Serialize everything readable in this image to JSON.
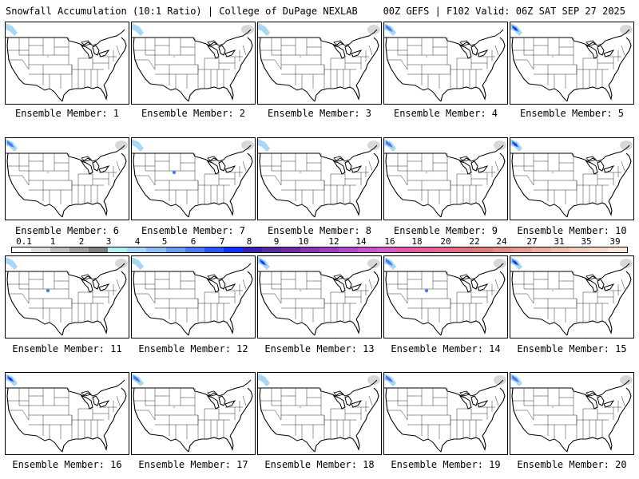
{
  "header": {
    "left": "Snowfall Accumulation (10:1 Ratio) | College of DuPage NEXLAB",
    "right": "00Z GEFS | F102 Valid: 06Z SAT SEP 27 2025"
  },
  "panels": [
    {
      "label": "Ensemble Member: 1",
      "snow_nw": 1,
      "snow_co": 1,
      "snow_ne": 0
    },
    {
      "label": "Ensemble Member: 2",
      "snow_nw": 1,
      "snow_co": 1,
      "snow_ne": 1
    },
    {
      "label": "Ensemble Member: 3",
      "snow_nw": 1,
      "snow_co": 1,
      "snow_ne": 1
    },
    {
      "label": "Ensemble Member: 4",
      "snow_nw": 2,
      "snow_co": 1,
      "snow_ne": 0
    },
    {
      "label": "Ensemble Member: 5",
      "snow_nw": 3,
      "snow_co": 1,
      "snow_ne": 1
    },
    {
      "label": "Ensemble Member: 6",
      "snow_nw": 2,
      "snow_co": 1,
      "snow_ne": 2
    },
    {
      "label": "Ensemble Member: 7",
      "snow_nw": 1,
      "snow_co": 2,
      "snow_ne": 1
    },
    {
      "label": "Ensemble Member: 8",
      "snow_nw": 1,
      "snow_co": 1,
      "snow_ne": 1
    },
    {
      "label": "Ensemble Member: 9",
      "snow_nw": 2,
      "snow_co": 1,
      "snow_ne": 1
    },
    {
      "label": "Ensemble Member: 10",
      "snow_nw": 3,
      "snow_co": 1,
      "snow_ne": 1
    },
    {
      "label": "Ensemble Member: 11",
      "snow_nw": 1,
      "snow_co": 2,
      "snow_ne": 1
    },
    {
      "label": "Ensemble Member: 12",
      "snow_nw": 1,
      "snow_co": 0,
      "snow_ne": 0
    },
    {
      "label": "Ensemble Member: 13",
      "snow_nw": 3,
      "snow_co": 1,
      "snow_ne": 1
    },
    {
      "label": "Ensemble Member: 14",
      "snow_nw": 2,
      "snow_co": 2,
      "snow_ne": 1
    },
    {
      "label": "Ensemble Member: 15",
      "snow_nw": 3,
      "snow_co": 1,
      "snow_ne": 1
    },
    {
      "label": "Ensemble Member: 16",
      "snow_nw": 3,
      "snow_co": 0,
      "snow_ne": 0
    },
    {
      "label": "Ensemble Member: 17",
      "snow_nw": 2,
      "snow_co": 1,
      "snow_ne": 0
    },
    {
      "label": "Ensemble Member: 18",
      "snow_nw": 1,
      "snow_co": 1,
      "snow_ne": 1
    },
    {
      "label": "Ensemble Member: 19",
      "snow_nw": 2,
      "snow_co": 0,
      "snow_ne": 1
    },
    {
      "label": "Ensemble Member: 20",
      "snow_nw": 2,
      "snow_co": 1,
      "snow_ne": 2
    }
  ],
  "colorbar": {
    "labels": [
      "0.1",
      "1",
      "2",
      "3",
      "4",
      "5",
      "6",
      "7",
      "8",
      "9",
      "10",
      "12",
      "14",
      "16",
      "18",
      "20",
      "22",
      "24",
      "27",
      "31",
      "35",
      "39"
    ],
    "colors": [
      "#ffffff",
      "#e0e0e0",
      "#bdbdbd",
      "#9e9e9e",
      "#7f7f7f",
      "#b3f0f0",
      "#a6d8f5",
      "#8cbcf0",
      "#6a9cf0",
      "#4a7af0",
      "#2a55f5",
      "#1030ff",
      "#3d1eb0",
      "#5a2aa0",
      "#6e2aa8",
      "#8a32b4",
      "#9e3cbe",
      "#b246c8",
      "#c850cc",
      "#d85ac8",
      "#e05aa8",
      "#e4609a",
      "#e4688c",
      "#e0707e",
      "#dc7c74",
      "#e08c80",
      "#e69c8c",
      "#ecac9c",
      "#f0bcaa",
      "#f4cab8",
      "#f8d8c8",
      "#fbe8d8"
    ]
  }
}
